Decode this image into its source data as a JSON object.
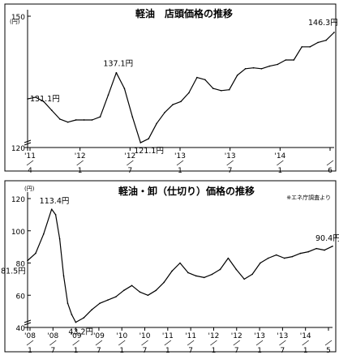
{
  "chart_data": [
    {
      "type": "line",
      "title": "軽油　店頭価格の推移",
      "unit": "(円)",
      "ylim": [
        120,
        150
      ],
      "y_ticks": [
        120,
        150
      ],
      "x_tick_labels": [
        {
          "year": "'11",
          "month": "4"
        },
        {
          "year": "'12",
          "month": "1"
        },
        {
          "year": "'12",
          "month": "7"
        },
        {
          "year": "'13",
          "month": "1"
        },
        {
          "year": "'13",
          "month": "7"
        },
        {
          "year": "'14",
          "month": "1"
        },
        {
          "year": "",
          "month": "6"
        }
      ],
      "x": [
        "2011/4",
        "2011/5",
        "2011/6",
        "2011/7",
        "2011/8",
        "2011/9",
        "2011/10",
        "2011/11",
        "2011/12",
        "2012/1",
        "2012/2",
        "2012/3",
        "2012/4",
        "2012/5",
        "2012/6",
        "2012/7",
        "2012/8",
        "2012/9",
        "2012/10",
        "2012/11",
        "2012/12",
        "2013/1",
        "2013/2",
        "2013/3",
        "2013/4",
        "2013/5",
        "2013/6",
        "2013/7",
        "2013/8",
        "2013/9",
        "2013/10",
        "2013/11",
        "2013/12",
        "2014/1",
        "2014/2",
        "2014/3",
        "2014/4",
        "2014/5",
        "2014/6"
      ],
      "values": [
        131.1,
        131.5,
        130.5,
        128.5,
        126.5,
        125.8,
        126.3,
        126.3,
        126.3,
        127.0,
        132.0,
        137.1,
        133.5,
        127.0,
        121.1,
        122.0,
        125.5,
        128.0,
        129.8,
        130.5,
        132.5,
        136.0,
        135.5,
        133.5,
        133.0,
        133.2,
        136.5,
        138.0,
        138.2,
        138.0,
        138.6,
        139.0,
        140.0,
        140.0,
        143.0,
        143.0,
        144.0,
        144.5,
        146.3
      ],
      "annotations": [
        {
          "text": "131.1円",
          "value": 131.1
        },
        {
          "text": "137.1円",
          "value": 137.1
        },
        {
          "text": "121.1円",
          "value": 121.1
        },
        {
          "text": "146.3円",
          "value": 146.3
        }
      ]
    },
    {
      "type": "line",
      "title": "軽油・卸（仕切り）価格の推移",
      "note": "※エネ庁調査より",
      "unit": "(円)",
      "ylim": [
        40,
        120
      ],
      "y_ticks": [
        40,
        60,
        80,
        100,
        120
      ],
      "x_tick_labels": [
        {
          "year": "'08",
          "month": "1"
        },
        {
          "year": "'08",
          "month": "7"
        },
        {
          "year": "'09",
          "month": "1"
        },
        {
          "year": "'09",
          "month": "7"
        },
        {
          "year": "'10",
          "month": "1"
        },
        {
          "year": "'10",
          "month": "7"
        },
        {
          "year": "'11",
          "month": "1"
        },
        {
          "year": "'11",
          "month": "7"
        },
        {
          "year": "'12",
          "month": "1"
        },
        {
          "year": "'12",
          "month": "7"
        },
        {
          "year": "'13",
          "month": "1"
        },
        {
          "year": "'13",
          "month": "7"
        },
        {
          "year": "'14",
          "month": "1"
        },
        {
          "year": "",
          "month": "5"
        }
      ],
      "x": [
        "2008/1",
        "2008/3",
        "2008/5",
        "2008/7",
        "2008/8",
        "2008/9",
        "2008/10",
        "2008/11",
        "2008/12",
        "2009/1",
        "2009/3",
        "2009/5",
        "2009/7",
        "2009/9",
        "2009/11",
        "2010/1",
        "2010/3",
        "2010/5",
        "2010/7",
        "2010/9",
        "2010/11",
        "2011/1",
        "2011/3",
        "2011/5",
        "2011/7",
        "2011/9",
        "2011/11",
        "2012/1",
        "2012/3",
        "2012/5",
        "2012/7",
        "2012/9",
        "2012/11",
        "2013/1",
        "2013/3",
        "2013/5",
        "2013/7",
        "2013/9",
        "2013/11",
        "2014/1",
        "2014/3",
        "2014/5"
      ],
      "values": [
        81.5,
        86.0,
        98.0,
        113.4,
        110.0,
        95.0,
        72.0,
        55.0,
        48.0,
        43.2,
        46.0,
        51.0,
        55.0,
        57.0,
        59.0,
        63.0,
        66.0,
        62.0,
        60.0,
        63.0,
        68.0,
        75.0,
        80.0,
        74.0,
        72.0,
        71.0,
        73.0,
        76.0,
        83.0,
        76.0,
        70.0,
        73.0,
        80.0,
        83.0,
        85.0,
        83.0,
        84.0,
        86.0,
        87.0,
        89.0,
        88.0,
        90.4
      ],
      "annotations": [
        {
          "text": "81.5円",
          "value": 81.5
        },
        {
          "text": "113.4円",
          "value": 113.4
        },
        {
          "text": "43.2円",
          "value": 43.2
        },
        {
          "text": "90.4円",
          "value": 90.4
        }
      ]
    }
  ]
}
